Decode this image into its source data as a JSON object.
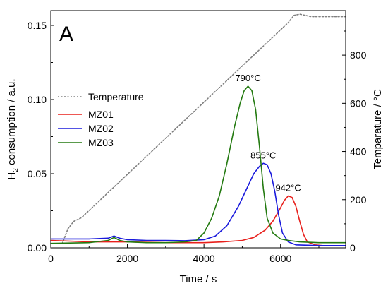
{
  "chart_data": {
    "type": "line",
    "panel_label": "A",
    "xlabel": "Time / s",
    "ylabel_prefix": "H",
    "ylabel_sub": "2",
    "ylabel_suffix": " consumption / a.u.",
    "y2label": "Temparature / °C",
    "xlim": [
      0,
      7700
    ],
    "ylim": [
      0,
      0.16
    ],
    "y2lim": [
      0,
      985
    ],
    "x_ticks": [
      0,
      2000,
      4000,
      6000
    ],
    "x_tick_labels": [
      "0",
      "2000",
      "4000",
      "6000"
    ],
    "y_ticks": [
      0.0,
      0.05,
      0.1,
      0.15
    ],
    "y_tick_labels": [
      "0.00",
      "0.05",
      "0.10",
      "0.15"
    ],
    "y2_ticks": [
      0,
      200,
      400,
      600,
      800
    ],
    "y2_tick_labels": [
      "0",
      "200",
      "400",
      "600",
      "800"
    ],
    "grid": false,
    "legend_position": "left",
    "series": [
      {
        "name": "Temperature",
        "axis": "right",
        "color": "#808080",
        "style": "dotted",
        "x": [
          300,
          450,
          600,
          800,
          1000,
          1500,
          2000,
          2500,
          3000,
          3500,
          4000,
          4500,
          5000,
          5500,
          6000,
          6200,
          6350,
          6500,
          6800,
          7700
        ],
        "y": [
          18,
          80,
          110,
          125,
          155,
          230,
          305,
          380,
          455,
          530,
          605,
          680,
          755,
          830,
          905,
          935,
          965,
          970,
          960,
          960
        ]
      },
      {
        "name": "MZ01",
        "axis": "left",
        "color": "#e8201c",
        "style": "solid",
        "x": [
          0,
          1000,
          2000,
          3000,
          4000,
          4500,
          5000,
          5300,
          5600,
          5800,
          6000,
          6100,
          6200,
          6300,
          6400,
          6500,
          6600,
          6700,
          6900,
          7100,
          7700
        ],
        "y": [
          0.005,
          0.004,
          0.004,
          0.0035,
          0.0035,
          0.004,
          0.005,
          0.007,
          0.012,
          0.018,
          0.027,
          0.032,
          0.035,
          0.034,
          0.028,
          0.018,
          0.009,
          0.004,
          0.002,
          0.0015,
          0.0015
        ]
      },
      {
        "name": "MZ02",
        "axis": "left",
        "color": "#1a1adc",
        "style": "solid",
        "x": [
          0,
          1000,
          1500,
          1650,
          1800,
          2000,
          2500,
          3000,
          3500,
          4000,
          4300,
          4600,
          4900,
          5100,
          5300,
          5450,
          5550,
          5650,
          5750,
          5850,
          5950,
          6050,
          6200,
          6400,
          7000,
          7700
        ],
        "y": [
          0.006,
          0.006,
          0.0065,
          0.008,
          0.0065,
          0.0055,
          0.005,
          0.005,
          0.0048,
          0.0055,
          0.008,
          0.015,
          0.028,
          0.039,
          0.05,
          0.055,
          0.057,
          0.056,
          0.05,
          0.038,
          0.022,
          0.01,
          0.004,
          0.002,
          0.0015,
          0.0015
        ]
      },
      {
        "name": "MZ03",
        "axis": "left",
        "color": "#237a10",
        "style": "solid",
        "x": [
          0,
          1000,
          1500,
          1650,
          1800,
          2000,
          2500,
          3000,
          3500,
          3800,
          4000,
          4200,
          4400,
          4600,
          4800,
          4950,
          5050,
          5150,
          5250,
          5350,
          5450,
          5550,
          5650,
          5800,
          6000,
          6200,
          6500,
          7000,
          7700
        ],
        "y": [
          0.003,
          0.0035,
          0.005,
          0.007,
          0.005,
          0.004,
          0.0035,
          0.0035,
          0.004,
          0.005,
          0.01,
          0.02,
          0.035,
          0.057,
          0.082,
          0.098,
          0.106,
          0.109,
          0.106,
          0.093,
          0.068,
          0.04,
          0.02,
          0.01,
          0.006,
          0.005,
          0.004,
          0.0035,
          0.0035
        ]
      }
    ],
    "annotations": [
      {
        "text": "790°C",
        "x": 5150,
        "y": 0.109
      },
      {
        "text": "855°C",
        "x": 5550,
        "y": 0.057
      },
      {
        "text": "942°C",
        "x": 6200,
        "y": 0.035
      }
    ]
  }
}
